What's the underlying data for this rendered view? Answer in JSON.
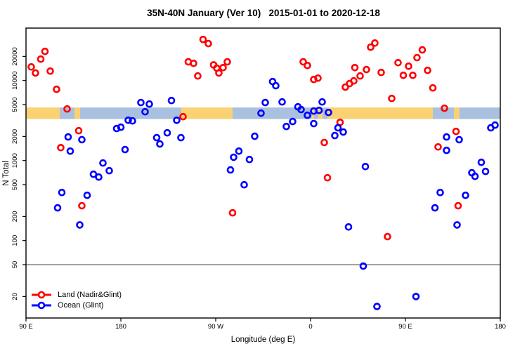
{
  "chart_data": {
    "type": "scatter",
    "title": "35N-40N January (Ver 10)   2015-01-01 to 2020-12-18",
    "xlabel": "Longitude (deg E)",
    "ylabel": "N Total",
    "x_axis": {
      "min": 90,
      "max": 540,
      "ticks": [
        {
          "value": 90,
          "label": "90 E"
        },
        {
          "value": 180,
          "label": "180"
        },
        {
          "value": 270,
          "label": "90 W"
        },
        {
          "value": 360,
          "label": "0"
        },
        {
          "value": 450,
          "label": "90 E"
        },
        {
          "value": 540,
          "label": "180"
        }
      ]
    },
    "y_axis": {
      "scale": "log",
      "min": 11,
      "max": 45000,
      "ticks": [
        20,
        50,
        100,
        200,
        500,
        1000,
        2000,
        5000,
        10000,
        20000
      ]
    },
    "reference_line": {
      "y": 50,
      "color": "#444444"
    },
    "surface_band": {
      "y_top": 4600,
      "y_bottom": 3300,
      "land_color": "#FAD173",
      "ocean_color": "#A9C0DF",
      "segments": [
        {
          "from": 90,
          "to": 122,
          "type": "land"
        },
        {
          "from": 122,
          "to": 136,
          "type": "ocean"
        },
        {
          "from": 136,
          "to": 141.3,
          "type": "land"
        },
        {
          "from": 141.3,
          "to": 237.3,
          "type": "ocean"
        },
        {
          "from": 237.3,
          "to": 286,
          "type": "land"
        },
        {
          "from": 286,
          "to": 361.3,
          "type": "ocean"
        },
        {
          "from": 361.3,
          "to": 363.3,
          "type": "land"
        },
        {
          "from": 363.3,
          "to": 367.3,
          "type": "ocean"
        },
        {
          "from": 367.3,
          "to": 371.3,
          "type": "land"
        },
        {
          "from": 371.3,
          "to": 376,
          "type": "ocean"
        },
        {
          "from": 376,
          "to": 476,
          "type": "land"
        },
        {
          "from": 476,
          "to": 496,
          "type": "ocean"
        },
        {
          "from": 496,
          "to": 501.3,
          "type": "land"
        },
        {
          "from": 501.3,
          "to": 540,
          "type": "ocean"
        }
      ]
    },
    "series": [
      {
        "name": "Land (Nadir&Glint)",
        "color": "#FF0000",
        "points": [
          [
            95,
            14800
          ],
          [
            99,
            12400
          ],
          [
            104,
            18500
          ],
          [
            108,
            23100
          ],
          [
            113,
            13100
          ],
          [
            119,
            7770
          ],
          [
            129,
            4410
          ],
          [
            123,
            1450
          ],
          [
            140,
            2360
          ],
          [
            143,
            272
          ],
          [
            239,
            3530
          ],
          [
            244,
            17100
          ],
          [
            249,
            16400
          ],
          [
            253,
            11400
          ],
          [
            258,
            32600
          ],
          [
            263,
            28900
          ],
          [
            268,
            15700
          ],
          [
            271,
            14300
          ],
          [
            273,
            12400
          ],
          [
            277,
            14500
          ],
          [
            281,
            17100
          ],
          [
            286,
            222
          ],
          [
            353,
            17100
          ],
          [
            357,
            15400
          ],
          [
            363,
            10300
          ],
          [
            367,
            10700
          ],
          [
            373,
            1680
          ],
          [
            376,
            610
          ],
          [
            388,
            3000
          ],
          [
            393,
            8260
          ],
          [
            397,
            9140
          ],
          [
            401,
            9900
          ],
          [
            402,
            14500
          ],
          [
            407,
            11400
          ],
          [
            413,
            13700
          ],
          [
            417,
            26100
          ],
          [
            421,
            29400
          ],
          [
            427,
            12600
          ],
          [
            433,
            112
          ],
          [
            437,
            5970
          ],
          [
            443,
            16700
          ],
          [
            448,
            11600
          ],
          [
            453,
            15100
          ],
          [
            457,
            11600
          ],
          [
            461,
            19300
          ],
          [
            466,
            24100
          ],
          [
            471,
            13400
          ],
          [
            476,
            8090
          ],
          [
            481,
            1480
          ],
          [
            487,
            4500
          ],
          [
            498,
            2310
          ],
          [
            500,
            272
          ]
        ]
      },
      {
        "name": "Ocean (Glint)",
        "color": "#0000FF",
        "points": [
          [
            120,
            256
          ],
          [
            124,
            399
          ],
          [
            130,
            1970
          ],
          [
            132,
            1310
          ],
          [
            141,
            157
          ],
          [
            143,
            1820
          ],
          [
            148,
            368
          ],
          [
            154,
            674
          ],
          [
            159,
            622
          ],
          [
            163,
            931
          ],
          [
            169,
            746
          ],
          [
            176,
            2510
          ],
          [
            180,
            2610
          ],
          [
            184,
            1370
          ],
          [
            187,
            3190
          ],
          [
            191,
            3130
          ],
          [
            199,
            5300
          ],
          [
            203,
            4070
          ],
          [
            207,
            5080
          ],
          [
            214,
            1930
          ],
          [
            217,
            1610
          ],
          [
            224,
            2220
          ],
          [
            228,
            5620
          ],
          [
            233,
            3190
          ],
          [
            237,
            1930
          ],
          [
            284,
            762
          ],
          [
            287,
            1100
          ],
          [
            292,
            1310
          ],
          [
            297,
            498
          ],
          [
            302,
            1030
          ],
          [
            307,
            2010
          ],
          [
            313,
            3910
          ],
          [
            317,
            5300
          ],
          [
            324,
            9700
          ],
          [
            327,
            8600
          ],
          [
            333,
            5400
          ],
          [
            337,
            2660
          ],
          [
            343,
            3070
          ],
          [
            348,
            4690
          ],
          [
            351,
            4330
          ],
          [
            357,
            3680
          ],
          [
            363,
            4150
          ],
          [
            363,
            2890
          ],
          [
            368,
            4240
          ],
          [
            371,
            5400
          ],
          [
            377,
            3990
          ],
          [
            383,
            2050
          ],
          [
            386,
            2560
          ],
          [
            391,
            2270
          ],
          [
            396,
            148
          ],
          [
            410,
            48
          ],
          [
            412,
            841
          ],
          [
            423,
            15
          ],
          [
            460,
            20
          ],
          [
            478,
            256
          ],
          [
            483,
            399
          ],
          [
            489,
            1970
          ],
          [
            489,
            1340
          ],
          [
            499,
            157
          ],
          [
            501,
            1820
          ],
          [
            507,
            368
          ],
          [
            513,
            703
          ],
          [
            516,
            635
          ],
          [
            522,
            951
          ],
          [
            526,
            731
          ],
          [
            531,
            2560
          ],
          [
            535,
            2770
          ]
        ]
      }
    ]
  }
}
